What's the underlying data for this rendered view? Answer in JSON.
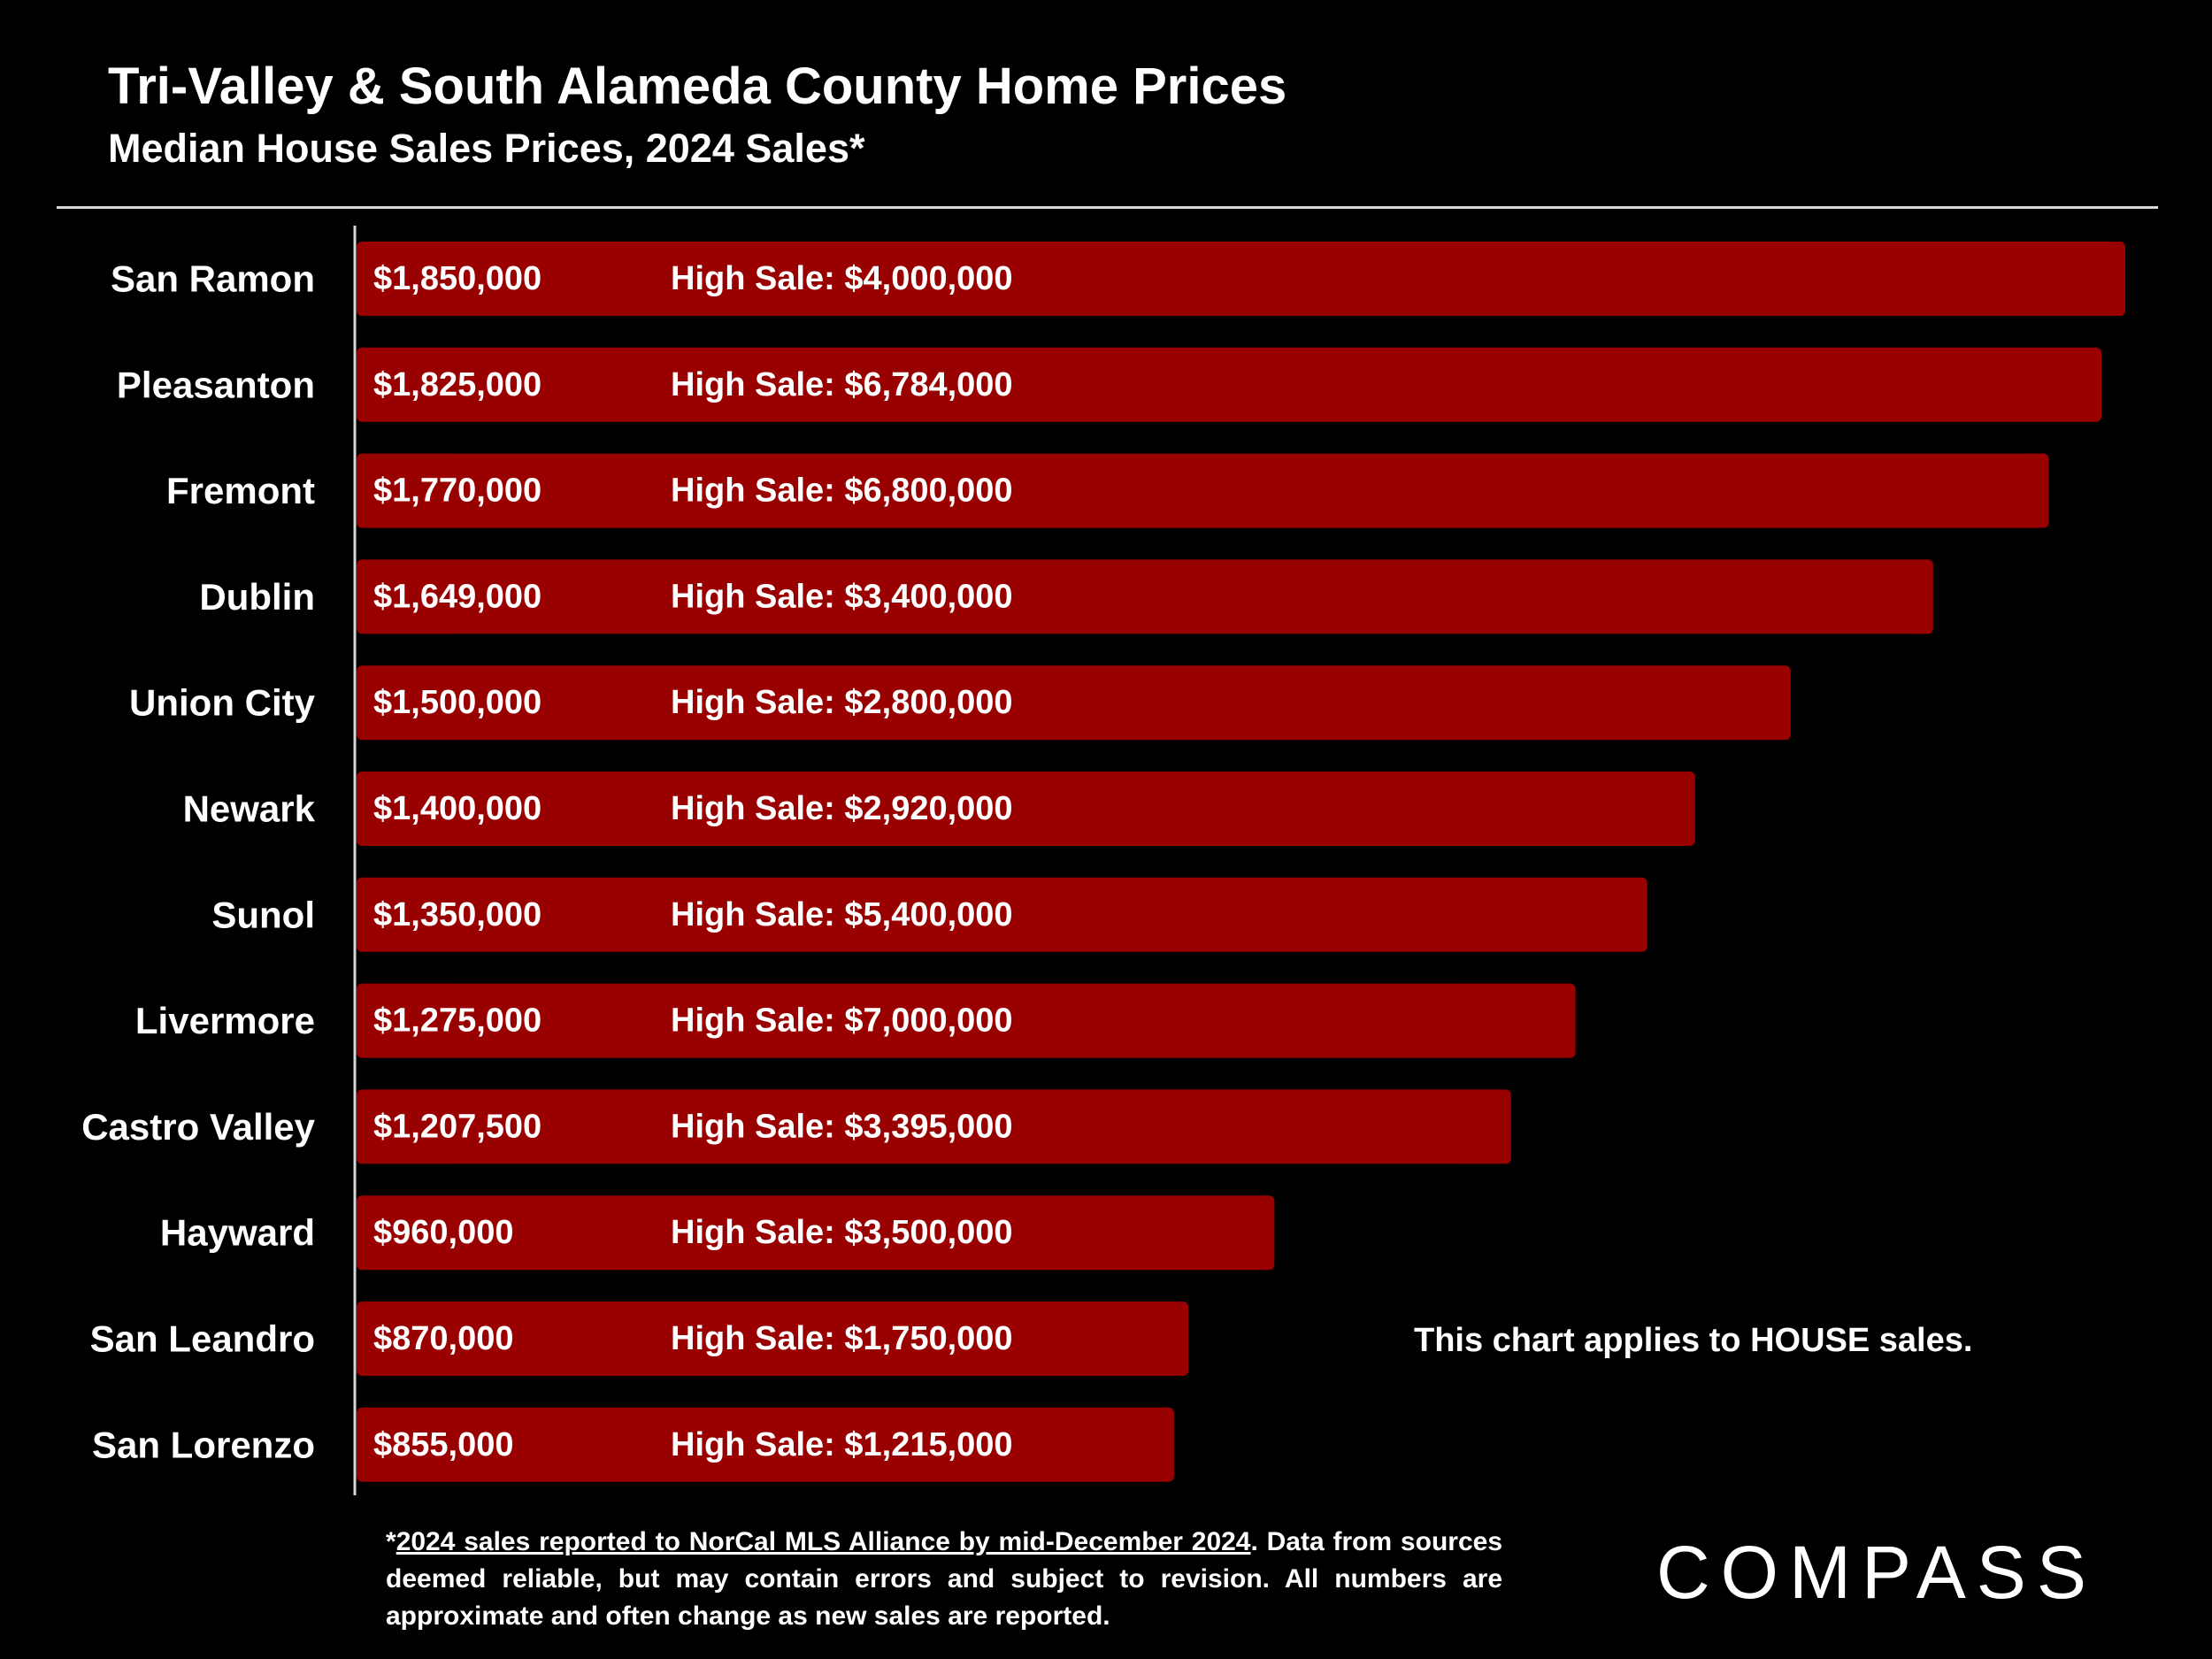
{
  "header": {
    "title": "Tri-Valley & South Alameda County Home Prices",
    "subtitle": "Median House Sales Prices, 2024 Sales*"
  },
  "note": "This chart applies to HOUSE sales.",
  "footnote": {
    "prefix": "*",
    "source": "2024 sales reported to NorCal MLS Alliance by mid-December 2024",
    "rest": ". Data from sources deemed reliable, but may contain errors and subject to revision. All numbers are approximate and often change as new sales are reported."
  },
  "brand": {
    "logo": "COMPASS"
  },
  "colors": {
    "bar": "#990000",
    "background": "#000000",
    "text": "#ffffff",
    "axis": "#d9d9d9"
  },
  "chart_data": {
    "type": "bar",
    "orientation": "horizontal",
    "title": "Tri-Valley & South Alameda County Home Prices",
    "subtitle": "Median House Sales Prices, 2024 Sales*",
    "xlabel": "",
    "ylabel": "",
    "xlim": [
      0,
      1850000
    ],
    "grid": false,
    "legend": "none",
    "high_sale_prefix": "High Sale:",
    "categories": [
      "San Ramon",
      "Pleasanton",
      "Fremont",
      "Dublin",
      "Union City",
      "Newark",
      "Sunol",
      "Livermore",
      "Castro Valley",
      "Hayward",
      "San Leandro",
      "San Lorenzo"
    ],
    "values": [
      1850000,
      1825000,
      1770000,
      1649000,
      1500000,
      1400000,
      1350000,
      1275000,
      1207500,
      960000,
      870000,
      855000
    ],
    "value_labels": [
      "$1,850,000",
      "$1,825,000",
      "$1,770,000",
      "$1,649,000",
      "$1,500,000",
      "$1,400,000",
      "$1,350,000",
      "$1,275,000",
      "$1,207,500",
      "$960,000",
      "$870,000",
      "$855,000"
    ],
    "high_sales": [
      4000000,
      6784000,
      6800000,
      3400000,
      2800000,
      2920000,
      5400000,
      7000000,
      3395000,
      3500000,
      1750000,
      1215000
    ],
    "high_sale_labels": [
      "$4,000,000",
      "$6,784,000",
      "$6,800,000",
      "$3,400,000",
      "$2,800,000",
      "$2,920,000",
      "$5,400,000",
      "$7,000,000",
      "$3,395,000",
      "$3,500,000",
      "$1,750,000",
      "$1,215,000"
    ]
  }
}
